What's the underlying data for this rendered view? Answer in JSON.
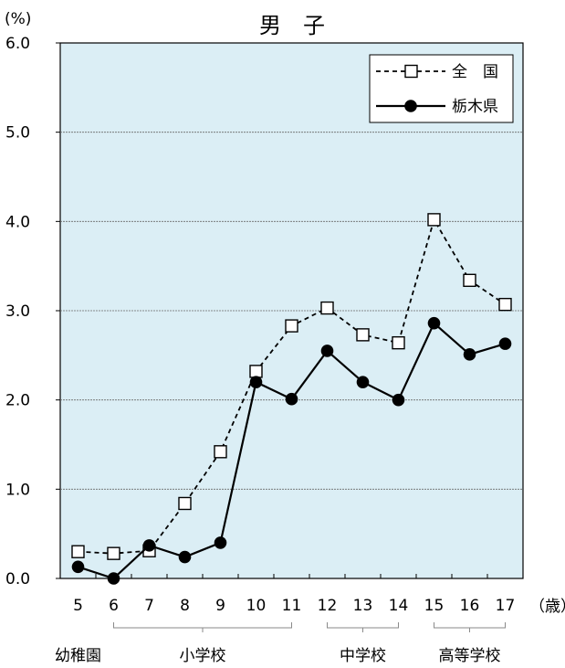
{
  "chart_data": {
    "type": "line",
    "title": "男　子",
    "ylabel": "(%)",
    "xlabel": "（歳）",
    "ylim": [
      0,
      6
    ],
    "yticks": [
      "0.0",
      "1.0",
      "2.0",
      "3.0",
      "4.0",
      "5.0",
      "6.0"
    ],
    "categories": [
      "5",
      "6",
      "7",
      "8",
      "9",
      "10",
      "11",
      "12",
      "13",
      "14",
      "15",
      "16",
      "17"
    ],
    "grid": "horizontal",
    "legend_position": "top-right",
    "background_color": "#dbeef5",
    "series": [
      {
        "name": "全　国",
        "style": "dashed-open-square",
        "color": "#000000",
        "values": [
          0.3,
          0.28,
          0.31,
          0.84,
          1.42,
          2.32,
          2.83,
          3.03,
          2.73,
          2.64,
          4.02,
          3.34,
          3.07
        ]
      },
      {
        "name": "栃木県",
        "style": "solid-filled-circle",
        "color": "#000000",
        "values": [
          0.13,
          0.0,
          0.37,
          0.24,
          0.4,
          2.2,
          2.01,
          2.55,
          2.2,
          2.0,
          2.86,
          2.51,
          2.63
        ]
      }
    ],
    "school_groups": [
      {
        "label": "幼稚園",
        "from": 0,
        "to": 0
      },
      {
        "label": "小学校",
        "from": 1,
        "to": 6
      },
      {
        "label": "中学校",
        "from": 7,
        "to": 9
      },
      {
        "label": "高等学校",
        "from": 10,
        "to": 12
      }
    ]
  }
}
